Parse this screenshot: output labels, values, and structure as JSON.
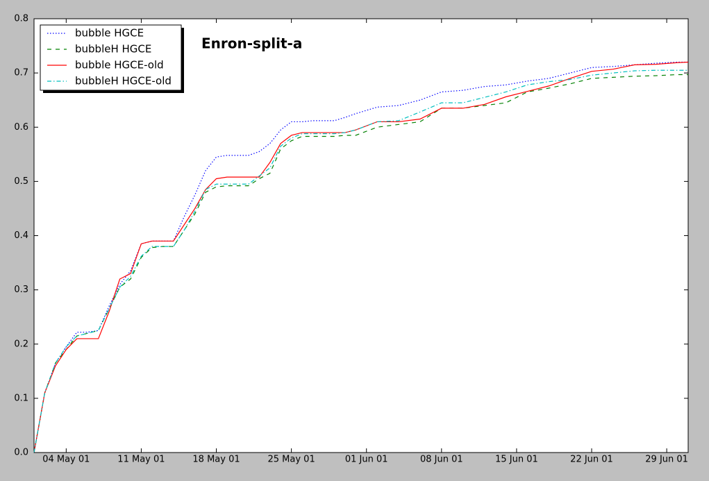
{
  "chart_data": {
    "type": "line",
    "title": "Enron-split-a",
    "x": [
      "2001-05-01",
      "2001-05-02",
      "2001-05-03",
      "2001-05-04",
      "2001-05-05",
      "2001-05-06",
      "2001-05-07",
      "2001-05-08",
      "2001-05-09",
      "2001-05-10",
      "2001-05-11",
      "2001-05-12",
      "2001-05-13",
      "2001-05-14",
      "2001-05-15",
      "2001-05-16",
      "2001-05-17",
      "2001-05-18",
      "2001-05-19",
      "2001-05-20",
      "2001-05-21",
      "2001-05-22",
      "2001-05-23",
      "2001-05-24",
      "2001-05-25",
      "2001-05-26",
      "2001-05-27",
      "2001-05-28",
      "2001-05-29",
      "2001-05-30",
      "2001-05-31",
      "2001-06-02",
      "2001-06-04",
      "2001-06-06",
      "2001-06-08",
      "2001-06-10",
      "2001-06-12",
      "2001-06-14",
      "2001-06-16",
      "2001-06-18",
      "2001-06-20",
      "2001-06-22",
      "2001-06-24",
      "2001-06-26",
      "2001-06-28",
      "2001-06-30",
      "2001-07-01"
    ],
    "series": [
      {
        "name": "bubble HGCE",
        "color": "#0000ff",
        "linestyle": "dotted",
        "values": [
          0,
          0.11,
          0.165,
          0.195,
          0.222,
          0.222,
          0.225,
          0.27,
          0.31,
          0.335,
          0.385,
          0.39,
          0.39,
          0.39,
          0.435,
          0.475,
          0.52,
          0.545,
          0.548,
          0.548,
          0.548,
          0.555,
          0.57,
          0.595,
          0.61,
          0.61,
          0.612,
          0.612,
          0.612,
          0.618,
          0.625,
          0.637,
          0.64,
          0.65,
          0.665,
          0.668,
          0.675,
          0.678,
          0.685,
          0.69,
          0.7,
          0.71,
          0.712,
          0.715,
          0.718,
          0.72,
          0.72
        ]
      },
      {
        "name": "bubbleH HGCE",
        "color": "#008000",
        "linestyle": "dashed",
        "values": [
          0,
          0.11,
          0.165,
          0.19,
          0.215,
          0.22,
          0.225,
          0.265,
          0.305,
          0.32,
          0.36,
          0.378,
          0.38,
          0.38,
          0.41,
          0.44,
          0.48,
          0.49,
          0.492,
          0.492,
          0.492,
          0.505,
          0.515,
          0.56,
          0.575,
          0.583,
          0.583,
          0.583,
          0.583,
          0.585,
          0.585,
          0.6,
          0.605,
          0.61,
          0.635,
          0.635,
          0.64,
          0.645,
          0.665,
          0.672,
          0.68,
          0.69,
          0.692,
          0.694,
          0.695,
          0.697,
          0.697
        ]
      },
      {
        "name": "bubble HGCE-old",
        "color": "#ff0000",
        "linestyle": "solid",
        "values": [
          0,
          0.11,
          0.16,
          0.19,
          0.21,
          0.21,
          0.21,
          0.26,
          0.32,
          0.33,
          0.385,
          0.39,
          0.39,
          0.39,
          0.42,
          0.45,
          0.485,
          0.505,
          0.508,
          0.508,
          0.508,
          0.508,
          0.535,
          0.57,
          0.585,
          0.59,
          0.59,
          0.59,
          0.59,
          0.59,
          0.595,
          0.61,
          0.61,
          0.615,
          0.635,
          0.635,
          0.642,
          0.656,
          0.666,
          0.676,
          0.69,
          0.703,
          0.707,
          0.715,
          0.716,
          0.719,
          0.72
        ]
      },
      {
        "name": "bubbleH HGCE-old",
        "color": "#00bfbf",
        "linestyle": "dashdot",
        "values": [
          0,
          0.11,
          0.165,
          0.195,
          0.215,
          0.22,
          0.225,
          0.265,
          0.305,
          0.325,
          0.362,
          0.38,
          0.38,
          0.38,
          0.41,
          0.445,
          0.485,
          0.495,
          0.495,
          0.495,
          0.495,
          0.51,
          0.525,
          0.565,
          0.58,
          0.588,
          0.588,
          0.588,
          0.588,
          0.59,
          0.595,
          0.61,
          0.612,
          0.628,
          0.645,
          0.645,
          0.655,
          0.665,
          0.678,
          0.684,
          0.688,
          0.696,
          0.7,
          0.704,
          0.705,
          0.705,
          0.705
        ]
      }
    ],
    "xlim": [
      "2001-05-01",
      "2001-07-01"
    ],
    "xticks": [
      {
        "value": "2001-05-04",
        "label": "04 May 01"
      },
      {
        "value": "2001-05-11",
        "label": "11 May 01"
      },
      {
        "value": "2001-05-18",
        "label": "18 May 01"
      },
      {
        "value": "2001-05-25",
        "label": "25 May 01"
      },
      {
        "value": "2001-06-01",
        "label": "01 Jun 01"
      },
      {
        "value": "2001-06-08",
        "label": "08 Jun 01"
      },
      {
        "value": "2001-06-15",
        "label": "15 Jun 01"
      },
      {
        "value": "2001-06-22",
        "label": "22 Jun 01"
      },
      {
        "value": "2001-06-29",
        "label": "29 Jun 01"
      }
    ],
    "ylim": [
      0,
      0.8
    ],
    "yticks": [
      {
        "value": 0,
        "label": "0.0"
      },
      0.1,
      0.2,
      0.3,
      0.4,
      0.5,
      0.6,
      0.7,
      0.8
    ],
    "legend": "upper left"
  }
}
